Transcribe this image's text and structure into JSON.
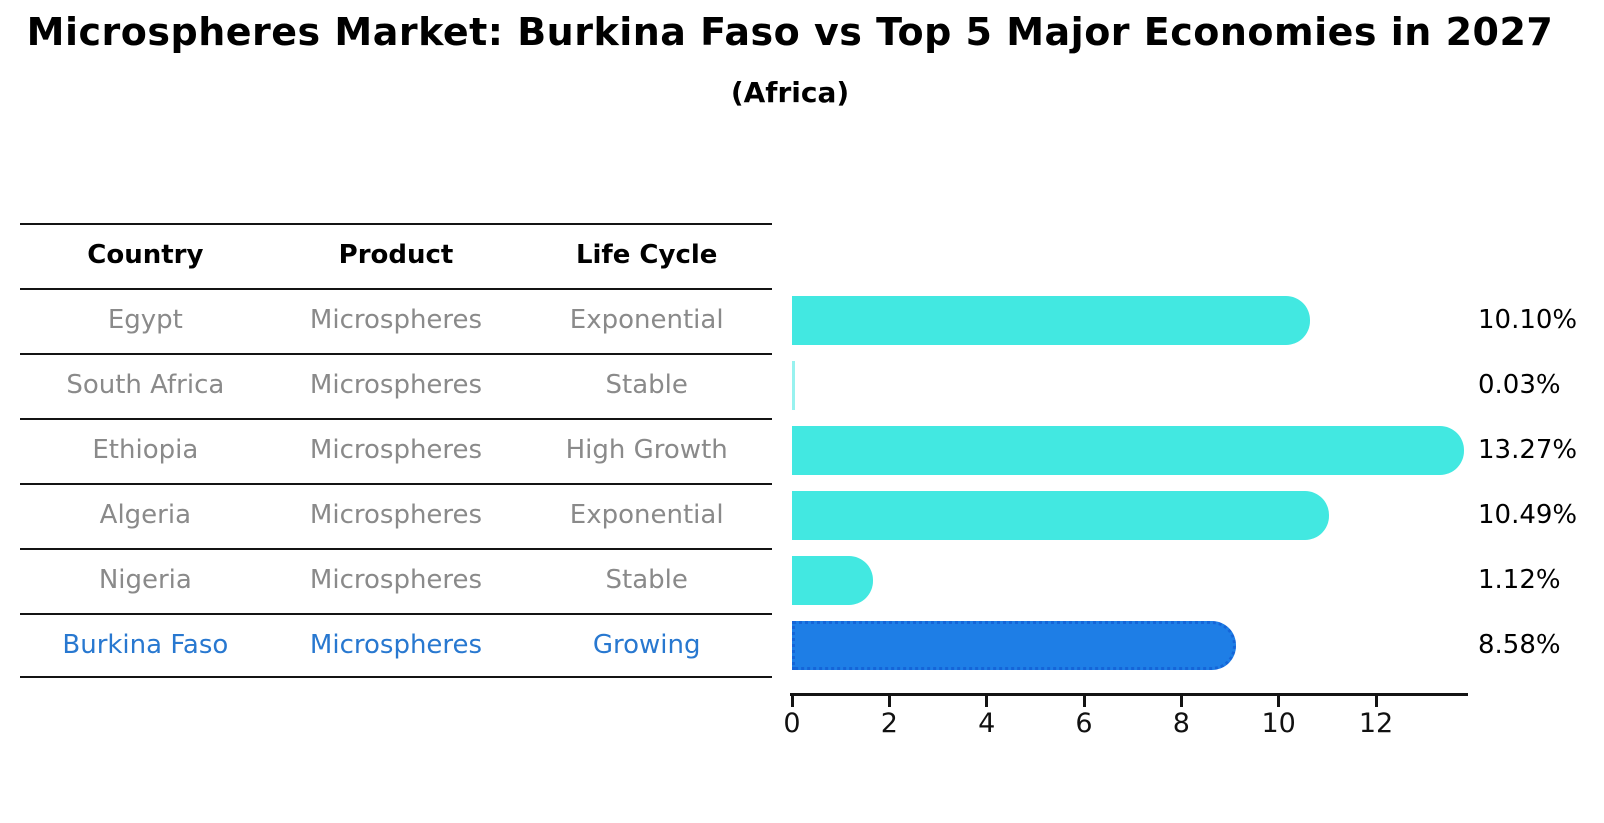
{
  "title": "Microspheres Market: Burkina Faso vs Top 5 Major Economies in 2027",
  "subtitle": "(Africa)",
  "table": {
    "headers": [
      "Country",
      "Product",
      "Life Cycle"
    ],
    "rows": [
      {
        "country": "Egypt",
        "product": "Microspheres",
        "life_cycle": "Exponential"
      },
      {
        "country": "South Africa",
        "product": "Microspheres",
        "life_cycle": "Stable"
      },
      {
        "country": "Ethiopia",
        "product": "Microspheres",
        "life_cycle": "High Growth"
      },
      {
        "country": "Algeria",
        "product": "Microspheres",
        "life_cycle": "Exponential"
      },
      {
        "country": "Nigeria",
        "product": "Microspheres",
        "life_cycle": "Stable"
      },
      {
        "country": "Burkina Faso",
        "product": "Microspheres",
        "life_cycle": "Growing"
      }
    ]
  },
  "chart_data": {
    "type": "bar",
    "orientation": "horizontal",
    "title": "Microspheres Market: Burkina Faso vs Top 5 Major Economies in 2027",
    "subtitle": "(Africa)",
    "categories": [
      "Egypt",
      "South Africa",
      "Ethiopia",
      "Algeria",
      "Nigeria",
      "Burkina Faso"
    ],
    "values": [
      10.1,
      0.03,
      13.27,
      10.49,
      1.12,
      8.58
    ],
    "labels": [
      "10.10%",
      "0.03%",
      "13.27%",
      "10.49%",
      "1.12%",
      "8.58%"
    ],
    "highlight_index": 5,
    "xlabel": "",
    "ylabel": "",
    "xlim": [
      0,
      13.9
    ],
    "xticks": [
      0,
      2,
      4,
      6,
      8,
      10,
      12
    ],
    "grid": false,
    "legend": false
  },
  "colors": {
    "bar_cyan": "#42E8E1",
    "bar_blue": "#1E7EE6",
    "bar_blue_border": "#1565D8",
    "highlight_text": "#2878D0",
    "muted_text": "#8A8A8A",
    "line": "#141414"
  }
}
